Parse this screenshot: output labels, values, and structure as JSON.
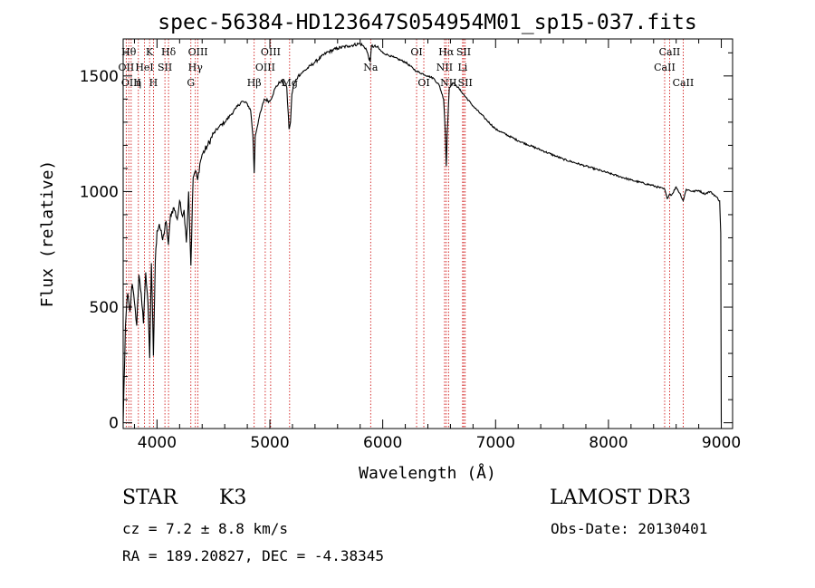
{
  "chart_data": {
    "type": "line",
    "title": "spec-56384-HD123647S054954M01_sp15-037.fits",
    "xlabel": "Wavelength (Å)",
    "ylabel": "Flux (relative)",
    "xlim": [
      3700,
      9100
    ],
    "ylim": [
      -25,
      1660
    ],
    "x_ticks": [
      4000,
      5000,
      6000,
      7000,
      8000,
      9000
    ],
    "y_ticks": [
      0,
      500,
      1000,
      1500
    ],
    "series": [
      {
        "name": "spectrum",
        "x": [
          3700,
          3720,
          3740,
          3760,
          3780,
          3800,
          3820,
          3840,
          3860,
          3880,
          3900,
          3920,
          3935,
          3950,
          3968,
          3985,
          4000,
          4020,
          4050,
          4080,
          4101,
          4120,
          4150,
          4180,
          4200,
          4220,
          4240,
          4260,
          4280,
          4300,
          4320,
          4340,
          4360,
          4380,
          4400,
          4450,
          4500,
          4550,
          4600,
          4650,
          4700,
          4750,
          4800,
          4830,
          4850,
          4861,
          4870,
          4900,
          4950,
          5000,
          5050,
          5100,
          5150,
          5170,
          5183,
          5195,
          5210,
          5250,
          5300,
          5400,
          5500,
          5600,
          5700,
          5800,
          5850,
          5890,
          5900,
          5950,
          6000,
          6050,
          6100,
          6200,
          6300,
          6400,
          6450,
          6500,
          6540,
          6555,
          6563,
          6572,
          6590,
          6620,
          6650,
          6700,
          6800,
          6900,
          7000,
          7200,
          7400,
          7600,
          7800,
          8000,
          8200,
          8400,
          8498,
          8520,
          8542,
          8560,
          8600,
          8640,
          8662,
          8690,
          8750,
          8800,
          8850,
          8900,
          8950,
          8985,
          8995,
          9000
        ],
        "y": [
          0,
          420,
          560,
          480,
          600,
          520,
          420,
          640,
          560,
          430,
          650,
          520,
          280,
          690,
          290,
          700,
          830,
          860,
          790,
          870,
          770,
          900,
          930,
          880,
          960,
          900,
          920,
          780,
          1000,
          680,
          1060,
          1090,
          1050,
          1120,
          1160,
          1200,
          1250,
          1280,
          1300,
          1330,
          1360,
          1390,
          1380,
          1350,
          1240,
          1080,
          1240,
          1310,
          1400,
          1390,
          1450,
          1480,
          1450,
          1270,
          1300,
          1420,
          1460,
          1500,
          1520,
          1560,
          1600,
          1620,
          1630,
          1640,
          1620,
          1560,
          1630,
          1625,
          1600,
          1590,
          1580,
          1560,
          1520,
          1500,
          1490,
          1460,
          1400,
          1250,
          1110,
          1260,
          1450,
          1470,
          1460,
          1430,
          1370,
          1320,
          1270,
          1220,
          1180,
          1140,
          1110,
          1080,
          1050,
          1025,
          1010,
          970,
          990,
          985,
          1020,
          985,
          960,
          1010,
          1000,
          1005,
          990,
          1000,
          980,
          960,
          820,
          0
        ]
      }
    ],
    "line_markers": [
      {
        "wavelength": 3750,
        "label": "Hθ",
        "row": 1
      },
      {
        "wavelength": 3727,
        "label": "OII",
        "row": 2
      },
      {
        "wavelength": 3771,
        "label": "OIII",
        "row": 3
      },
      {
        "wavelength": 3835,
        "label": "η",
        "row": 3
      },
      {
        "wavelength": 3889,
        "label": "HeI",
        "row": 2
      },
      {
        "wavelength": 3934,
        "label": "K",
        "row": 1
      },
      {
        "wavelength": 3968,
        "label": "H",
        "row": 3
      },
      {
        "wavelength": 4070,
        "label": "SII",
        "row": 2
      },
      {
        "wavelength": 4102,
        "label": "Hδ",
        "row": 1
      },
      {
        "wavelength": 4300,
        "label": "G",
        "row": 3
      },
      {
        "wavelength": 4340,
        "label": "Hγ",
        "row": 2
      },
      {
        "wavelength": 4363,
        "label": "OIII",
        "row": 1
      },
      {
        "wavelength": 4861,
        "label": "Hβ",
        "row": 3
      },
      {
        "wavelength": 4959,
        "label": "OIII",
        "row": 2
      },
      {
        "wavelength": 5007,
        "label": "OIII",
        "row": 1
      },
      {
        "wavelength": 5175,
        "label": "Mg",
        "row": 3
      },
      {
        "wavelength": 5893,
        "label": "Na",
        "row": 2
      },
      {
        "wavelength": 6300,
        "label": "OI",
        "row": 1
      },
      {
        "wavelength": 6364,
        "label": "OI",
        "row": 3
      },
      {
        "wavelength": 6548,
        "label": "NII",
        "row": 2
      },
      {
        "wavelength": 6563,
        "label": "Hα",
        "row": 1
      },
      {
        "wavelength": 6583,
        "label": "NII",
        "row": 3
      },
      {
        "wavelength": 6708,
        "label": "Li",
        "row": 2
      },
      {
        "wavelength": 6717,
        "label": "SII",
        "row": 1
      },
      {
        "wavelength": 6731,
        "label": "SII",
        "row": 3
      },
      {
        "wavelength": 8498,
        "label": "CaII",
        "row": 2
      },
      {
        "wavelength": 8542,
        "label": "CaII",
        "row": 1
      },
      {
        "wavelength": 8662,
        "label": "CaII",
        "row": 3
      }
    ],
    "colors": {
      "curve": "#000000",
      "marker": "#cc0000",
      "axes": "#000000"
    }
  },
  "info": {
    "class_label": "STAR",
    "subclass": "K3",
    "survey": "LAMOST DR3",
    "redshift": "cz = 7.2 ± 8.8 km/s",
    "obs_date": "Obs-Date: 20130401",
    "coords": "RA = 189.20827, DEC =  -4.38345"
  }
}
